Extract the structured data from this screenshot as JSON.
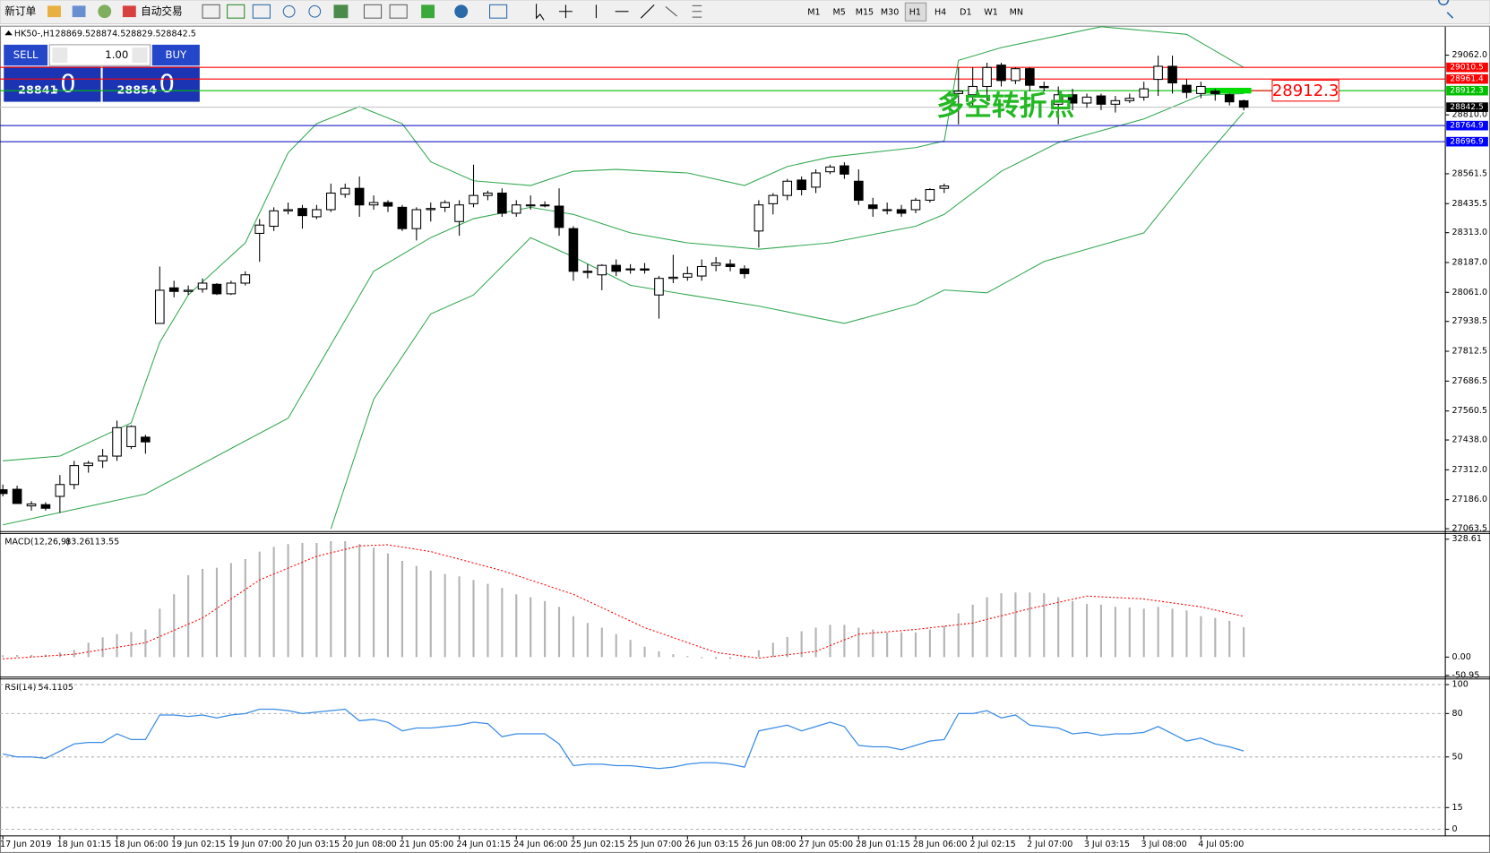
{
  "toolbar": {
    "new_order": "新订单",
    "auto_trade": "自动交易",
    "timeframes": [
      "M1",
      "M5",
      "M15",
      "M30",
      "H1",
      "H4",
      "D1",
      "W1",
      "MN"
    ]
  },
  "trade_panel": {
    "sell": "SELL",
    "buy": "BUY",
    "lot": "1.00",
    "sell_price": "28841",
    "sell_fraction": ".0",
    "buy_price": "28854",
    "buy_fraction": ".0"
  },
  "chart_data": [
    {
      "type": "candlestick",
      "title": "HK50-,H1",
      "annotation": "多空转折点",
      "categories": [
        "17 Jun 2019",
        null,
        null,
        null,
        "18 Jun 01:15",
        null,
        null,
        null,
        "18 Jun 06:00",
        null,
        null,
        null,
        "19 Jun 02:15",
        null,
        null,
        null,
        "19 Jun 07:00",
        null,
        null,
        null,
        "20 Jun 03:15",
        null,
        null,
        null,
        "20 Jun 08:00",
        null,
        null,
        null,
        "21 Jun 05:00",
        null,
        null,
        null,
        "24 Jun 01:15",
        null,
        null,
        null,
        "24 Jun 06:00",
        null,
        null,
        null,
        "25 Jun 02:15",
        null,
        null,
        null,
        "25 Jun 07:00",
        null,
        null,
        null,
        "26 Jun 03:15",
        null,
        null,
        null,
        "26 Jun 08:00",
        null,
        null,
        null,
        "27 Jun 05:00",
        null,
        null,
        null,
        "28 Jun 01:15",
        null,
        null,
        null,
        "28 Jun 06:00",
        null,
        null,
        null,
        "2 Jul 02:15",
        null,
        null,
        null,
        "2 Jul 07:00",
        null,
        null,
        null,
        "3 Jul 03:15",
        null,
        null,
        null,
        "3 Jul 08:00",
        null,
        null,
        null,
        "4 Jul 05:00",
        null,
        null,
        null
      ],
      "open": [
        27228,
        27230,
        27160,
        27165,
        27200,
        27250,
        27330,
        27350,
        27370,
        27410,
        27450,
        27930,
        28080,
        28065,
        28075,
        28095,
        28055,
        28100,
        28310,
        28340,
        28405,
        28415,
        28380,
        28410,
        28475,
        28500,
        28430,
        28440,
        28420,
        28330,
        28410,
        28420,
        28360,
        28435,
        28470,
        28480,
        28395,
        28430,
        28430,
        28425,
        28330,
        28150,
        28135,
        28175,
        28160,
        28160,
        28050,
        28120,
        28125,
        28130,
        28175,
        28180,
        28160,
        28320,
        28435,
        28470,
        28535,
        28505,
        28570,
        28595,
        28530,
        28430,
        28410,
        28410,
        28410,
        28450,
        28500,
        28900,
        28895,
        28930,
        29020,
        28955,
        29005,
        28930,
        28855,
        28895,
        28860,
        28890,
        28855,
        28870,
        28885,
        28960,
        29015,
        28935,
        28900,
        28910,
        28895,
        28869.5
      ],
      "high": [
        27250,
        27245,
        27180,
        27175,
        27290,
        27350,
        27350,
        27400,
        27520,
        27500,
        27460,
        28170,
        28110,
        28090,
        28120,
        28100,
        28110,
        28150,
        28370,
        28420,
        28440,
        28430,
        28430,
        28520,
        28520,
        28550,
        28470,
        28450,
        28430,
        28420,
        28440,
        28450,
        28450,
        28600,
        28490,
        28500,
        28450,
        28470,
        28445,
        28500,
        28340,
        28180,
        28180,
        28200,
        28180,
        28185,
        28130,
        28220,
        28170,
        28200,
        28210,
        28200,
        28175,
        28450,
        28480,
        28540,
        28550,
        28580,
        28600,
        28610,
        28580,
        28460,
        28440,
        28430,
        28460,
        28500,
        28520,
        29010,
        29010,
        29030,
        29030,
        29010,
        29010,
        28950,
        28930,
        28920,
        28900,
        28900,
        28890,
        28900,
        28950,
        29060,
        29060,
        28960,
        28950,
        28920,
        28900,
        28874.5
      ],
      "low": [
        27200,
        27180,
        27140,
        27140,
        27130,
        27230,
        27300,
        27320,
        27350,
        27400,
        27380,
        27930,
        28040,
        28050,
        28060,
        28050,
        28050,
        28090,
        28190,
        28320,
        28390,
        28330,
        28370,
        28400,
        28460,
        28380,
        28410,
        28400,
        28320,
        28280,
        28360,
        28400,
        28300,
        28420,
        28450,
        28380,
        28380,
        28410,
        28420,
        28300,
        28110,
        28120,
        28070,
        28130,
        28140,
        28140,
        27950,
        28100,
        28110,
        28110,
        28150,
        28150,
        28120,
        28250,
        28390,
        28450,
        28470,
        28480,
        28560,
        28540,
        28430,
        28380,
        28390,
        28380,
        28395,
        28440,
        28480,
        28770,
        28850,
        28870,
        28930,
        28940,
        28910,
        28910,
        28770,
        28830,
        28840,
        28830,
        28820,
        28860,
        28870,
        28890,
        28900,
        28880,
        28880,
        28870,
        28850,
        28829.5
      ],
      "close": [
        27212,
        27170,
        27168,
        27150,
        27250,
        27330,
        27340,
        27370,
        27490,
        27495,
        27430,
        28070,
        28065,
        28070,
        28100,
        28055,
        28100,
        28135,
        28345,
        28405,
        28410,
        28385,
        28410,
        28480,
        28500,
        28430,
        28440,
        28425,
        28330,
        28410,
        28415,
        28440,
        28430,
        28470,
        28480,
        28395,
        28430,
        28430,
        28428,
        28335,
        28150,
        28145,
        28175,
        28150,
        28160,
        28155,
        28120,
        28125,
        28140,
        28170,
        28185,
        28170,
        28140,
        28430,
        28470,
        28530,
        28495,
        28565,
        28590,
        28560,
        28450,
        28415,
        28410,
        28395,
        28450,
        28495,
        28510,
        28910,
        28930,
        29010,
        28955,
        29005,
        28935,
        28925,
        28895,
        28860,
        28885,
        28855,
        28870,
        28880,
        28920,
        29015,
        28945,
        28905,
        28930,
        28900,
        28865,
        28842.5
      ],
      "up_color": "#ffffff",
      "down_color": "#000000",
      "bands": [
        {
          "color": "#33a852",
          "x": [
            0,
            4,
            9,
            11,
            13,
            17,
            20,
            22,
            25,
            28,
            30,
            33,
            37,
            40,
            43,
            48,
            52,
            55,
            58,
            64,
            66,
            67,
            70,
            77,
            83,
            87
          ],
          "values": [
            27350,
            27370,
            27510,
            27850,
            28050,
            28270,
            28650,
            28773,
            28845,
            28773,
            28612,
            28532,
            28512,
            28572,
            28580,
            28565,
            28512,
            28592,
            28632,
            28672,
            28700,
            29040,
            29094,
            29182,
            29150,
            29010
          ]
        },
        {
          "color": "#33a852",
          "x": [
            0,
            10,
            20,
            26,
            30,
            33,
            37,
            40,
            44,
            48,
            53,
            58,
            64,
            66,
            70,
            74,
            80,
            84,
            87
          ],
          "values": [
            27080,
            27210,
            27530,
            28150,
            28292,
            28372,
            28420,
            28390,
            28312,
            28270,
            28243,
            28270,
            28340,
            28390,
            28572,
            28693,
            28793,
            28893,
            28900
          ]
        },
        {
          "color": "#33a852",
          "x": [
            23,
            26,
            30,
            33,
            37,
            40,
            44,
            48,
            53,
            59,
            64,
            66,
            69,
            73,
            76,
            80,
            84,
            87
          ],
          "values": [
            27063,
            27610,
            27970,
            28050,
            28292,
            28211,
            28091,
            28051,
            28003,
            27930,
            28011,
            28071,
            28059,
            28191,
            28243,
            28312,
            28612,
            28821
          ]
        }
      ],
      "levels": [
        {
          "value": 29010.5,
          "line_color": "#ff0000",
          "label_color": "#ff0000"
        },
        {
          "value": 28961.4,
          "line_color": "#ff0000",
          "label_color": "#ff0000"
        },
        {
          "value": 28912.3,
          "line_color": "#00c000",
          "label_color": "#00c000",
          "marker": "#00dd00",
          "callout": "#ff0000"
        },
        {
          "value": 28842.5,
          "line_color": "#c0c0c0",
          "label_color": "#000000"
        },
        {
          "value": 28764.9,
          "line_color": "#0000c0",
          "label_color": "#0000ff"
        },
        {
          "value": 28696.9,
          "line_color": "#0000c0",
          "label_color": "#0000ff"
        }
      ],
      "ylim": [
        27055.5,
        29182.4
      ],
      "yticks": [
        {
          "value": 29062,
          "label": "29062.0"
        },
        {
          "value": 28810,
          "label": "28810.0"
        },
        28561.5,
        28435.5,
        {
          "value": 28313,
          "label": "28313.0"
        },
        {
          "value": 28187,
          "label": "28187.0"
        },
        {
          "value": 28061,
          "label": "28061.0"
        },
        27938.5,
        27812.5,
        27686.5,
        27560.5,
        {
          "value": 27438,
          "label": "27438.0"
        },
        {
          "value": 27312,
          "label": "27312.0"
        },
        {
          "value": 27186,
          "label": "27186.0"
        },
        27063.5
      ]
    },
    {
      "type": "bar",
      "title": "MACD(12,26,9)",
      "series": [
        {
          "kind": "bar",
          "color": "#b4b4b4",
          "values": [
            5,
            6,
            6,
            7,
            13,
            20,
            40,
            55,
            64,
            70,
            77,
            135,
            175,
            228,
            246,
            249,
            262,
            273,
            294,
            307,
            315,
            318,
            318,
            323,
            323,
            315,
            305,
            289,
            268,
            254,
            241,
            232,
            225,
            215,
            204,
            193,
            175,
            167,
            156,
            140,
            114,
            95,
            82,
            64,
            48,
            29,
            16,
            8,
            3,
            -3,
            -5,
            -5,
            -3,
            19,
            40,
            56,
            72,
            82,
            90,
            90,
            82,
            77,
            69,
            69,
            69,
            77,
            87,
            122,
            146,
            167,
            178,
            180,
            180,
            178,
            167,
            156,
            148,
            146,
            140,
            138,
            135,
            140,
            135,
            130,
            114,
            109,
            101,
            83.26
          ]
        },
        {
          "kind": "line",
          "color": "#ff0000",
          "dashed": true,
          "x": [
            0,
            5,
            10,
            14,
            18,
            22,
            25,
            27,
            30,
            35,
            40,
            45,
            50,
            53,
            57,
            60,
            64,
            68,
            72,
            76,
            80,
            84,
            87
          ],
          "values": [
            -5,
            8,
            40,
            109,
            215,
            281,
            310,
            313,
            294,
            241,
            175,
            82,
            13,
            -3,
            16,
            64,
            77,
            95,
            135,
            170,
            162,
            140,
            113.55
          ]
        }
      ],
      "ylim": [
        -55.65,
        344.5
      ],
      "yticks": [
        328.61,
        {
          "value": 0,
          "label": "0.00"
        },
        -50.95
      ]
    },
    {
      "type": "line",
      "title": "RSI(14)",
      "series": [
        {
          "color": "#3c8ce6",
          "values": [
            52,
            50,
            50,
            49,
            54,
            59,
            60,
            60,
            66,
            62,
            62,
            79,
            79,
            78,
            79,
            77,
            79,
            80,
            83,
            83,
            82,
            80,
            81,
            82,
            83,
            75,
            76,
            74,
            68,
            70,
            70,
            71,
            72,
            74,
            73,
            64,
            66,
            66,
            66,
            59,
            44,
            45,
            45,
            44,
            44,
            43,
            42,
            43,
            45,
            46,
            46,
            45,
            43,
            68,
            70,
            72,
            68,
            71,
            74,
            71,
            58,
            57,
            57,
            55,
            58,
            61,
            62,
            80,
            80,
            82,
            77,
            79,
            72,
            71,
            70,
            66,
            67,
            65,
            66,
            66,
            67,
            71,
            66,
            61,
            63,
            59,
            57,
            54.1105
          ]
        }
      ],
      "ylim": [
        -3.9,
        103.9
      ],
      "yticks": [
        100,
        80,
        50,
        15,
        0
      ],
      "grid": true
    }
  ]
}
